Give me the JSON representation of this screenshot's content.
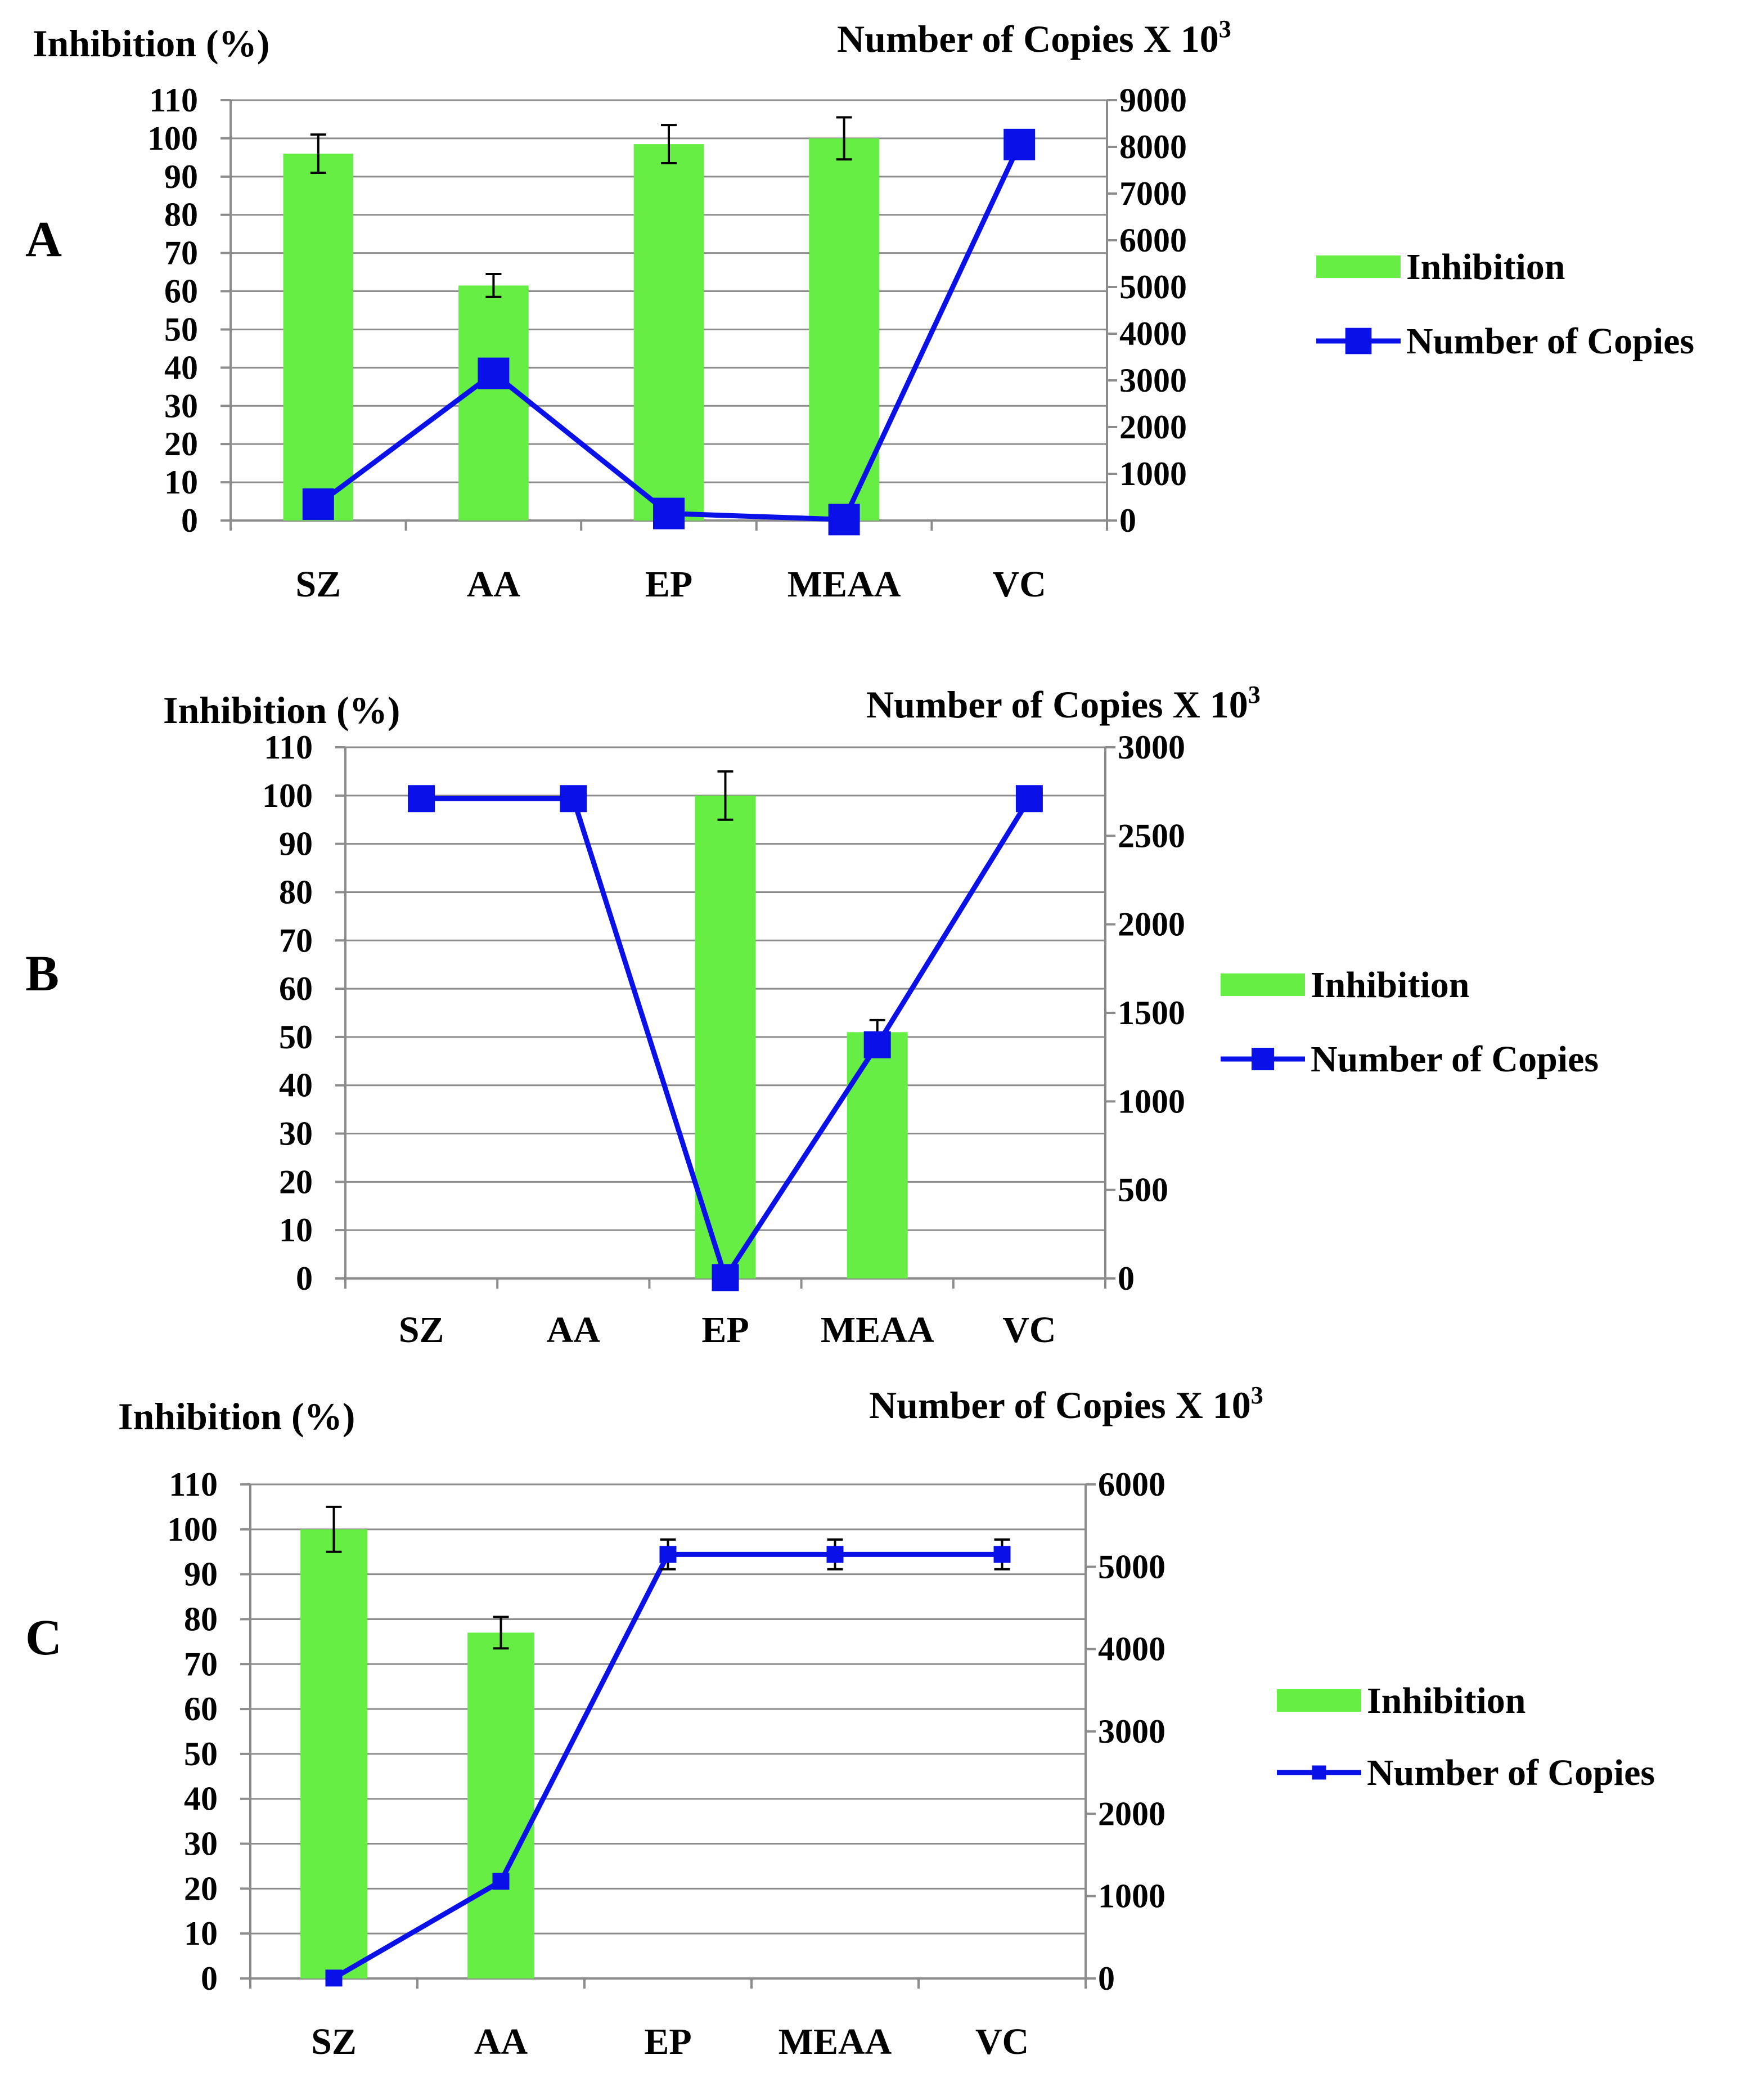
{
  "figure": {
    "description_panels": [
      "A",
      "B",
      "C"
    ]
  },
  "chart_data": [
    {
      "panel": "A",
      "type": "bar+line",
      "categories": [
        "SZ",
        "AA",
        "EP",
        "MEAA",
        "VC"
      ],
      "left_axis": {
        "label": "Inhibition (%)",
        "ylim": [
          0,
          110
        ],
        "ticks": [
          0,
          10,
          20,
          30,
          40,
          50,
          60,
          70,
          80,
          90,
          100,
          110
        ]
      },
      "right_axis": {
        "label_main": "Number of Copies X 10",
        "label_sup": "3",
        "ylim": [
          0,
          9000
        ],
        "ticks": [
          0,
          1000,
          2000,
          3000,
          4000,
          5000,
          6000,
          7000,
          8000,
          9000
        ]
      },
      "series": [
        {
          "name": "Inhibition",
          "kind": "bar",
          "axis": "left",
          "color": "#66ee44",
          "values": [
            96,
            61.5,
            98.5,
            100,
            null
          ],
          "errors": [
            5,
            3,
            5,
            5.5,
            null
          ]
        },
        {
          "name": "Number of Copies",
          "kind": "line",
          "axis": "right",
          "color": "#0a10e8",
          "values": [
            350,
            3150,
            150,
            20,
            8050
          ],
          "errors": [
            null,
            null,
            null,
            null,
            null
          ]
        }
      ],
      "grid": true,
      "legend": "right",
      "marker": "large-square"
    },
    {
      "panel": "B",
      "type": "bar+line",
      "categories": [
        "SZ",
        "AA",
        "EP",
        "MEAA",
        "VC"
      ],
      "left_axis": {
        "label": "Inhibition (%)",
        "ylim": [
          0,
          110
        ],
        "ticks": [
          0,
          10,
          20,
          30,
          40,
          50,
          60,
          70,
          80,
          90,
          100,
          110
        ]
      },
      "right_axis": {
        "label_main": "Number of Copies X 10",
        "label_sup": "3",
        "ylim": [
          0,
          3000
        ],
        "ticks": [
          0,
          500,
          1000,
          1500,
          2000,
          2500,
          3000
        ]
      },
      "series": [
        {
          "name": "Inhibition",
          "kind": "bar",
          "axis": "left",
          "color": "#66ee44",
          "values": [
            null,
            null,
            100,
            51,
            null
          ],
          "errors": [
            null,
            null,
            5,
            2.5,
            null
          ]
        },
        {
          "name": "Number of Copies",
          "kind": "line",
          "axis": "right",
          "color": "#0a10e8",
          "values": [
            2710,
            2710,
            5,
            1320,
            2710
          ],
          "errors": [
            null,
            null,
            null,
            null,
            null
          ]
        }
      ],
      "grid": true,
      "legend": "right",
      "marker": "large-square"
    },
    {
      "panel": "C",
      "type": "bar+line",
      "categories": [
        "SZ",
        "AA",
        "EP",
        "MEAA",
        "VC"
      ],
      "left_axis": {
        "label": "Inhibition (%)",
        "ylim": [
          0,
          110
        ],
        "ticks": [
          0,
          10,
          20,
          30,
          40,
          50,
          60,
          70,
          80,
          90,
          100,
          110
        ]
      },
      "right_axis": {
        "label_main": "Number of Copies X 10",
        "label_sup": "3",
        "ylim": [
          0,
          6000
        ],
        "ticks": [
          0,
          1000,
          2000,
          3000,
          4000,
          5000,
          6000
        ]
      },
      "series": [
        {
          "name": "Inhibition",
          "kind": "bar",
          "axis": "left",
          "color": "#66ee44",
          "values": [
            100,
            77,
            null,
            null,
            null
          ],
          "errors": [
            5,
            3.5,
            null,
            null,
            null
          ]
        },
        {
          "name": "Number of Copies",
          "kind": "line",
          "axis": "right",
          "color": "#0a10e8",
          "values": [
            5,
            1180,
            5150,
            5150,
            5150
          ],
          "errors": [
            null,
            null,
            180,
            180,
            180
          ]
        }
      ],
      "grid": true,
      "legend": "right",
      "marker": "small-square"
    }
  ]
}
